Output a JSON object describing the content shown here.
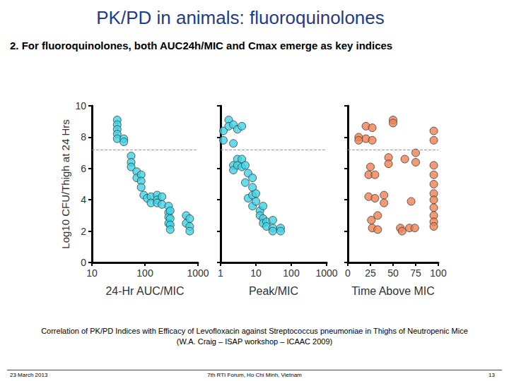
{
  "slide": {
    "title": "PK/PD in animals: fluoroquinolones",
    "subtitle": "2. For fluoroquinolones, both AUC24h/MIC and Cmax emerge as key indices",
    "caption": [
      "Correlation of PK/PD Indices with Efficacy of Levofloxacin against Streptococcus pneumoniae in Thighs of Neutropenic Mice",
      "(W.A. Craig – ISAP workshop – ICAAC 2009)"
    ],
    "footer": {
      "left": "23 March 2013",
      "center": "7th RTI Forum, Ho Chi Minh, Vietnam",
      "right": "13"
    }
  },
  "chart_data": [
    {
      "type": "scatter",
      "xlabel": "24-Hr AUC/MIC",
      "ylabel": "Log10 CFU/Thigh at 24 Hrs",
      "log": "x",
      "xlim": [
        10,
        1000
      ],
      "xticks": [
        10,
        100,
        1000
      ],
      "ylim": [
        0,
        10
      ],
      "yticks": [
        0,
        2,
        4,
        6,
        8,
        10
      ],
      "grid": false,
      "color": "#3fd3e6",
      "marker": "circle",
      "hline": 7.2,
      "x": [
        30,
        30,
        30,
        30,
        30,
        40,
        40,
        55,
        55,
        55,
        70,
        70,
        85,
        85,
        85,
        95,
        110,
        130,
        130,
        170,
        170,
        170,
        210,
        210,
        280,
        280,
        280,
        280,
        300,
        300,
        300,
        300,
        600,
        600,
        700,
        700,
        700
      ],
      "values": [
        9.1,
        8.8,
        8.5,
        8.2,
        7.9,
        7.9,
        7.7,
        6.8,
        6.4,
        6.1,
        5.8,
        5.4,
        5.6,
        5.2,
        4.8,
        4.3,
        4.1,
        4.2,
        3.8,
        4.3,
        4.0,
        3.8,
        4.2,
        3.7,
        3.6,
        3.2,
        2.9,
        2.5,
        3.3,
        2.8,
        2.4,
        2.1,
        3.0,
        2.5,
        2.8,
        2.3,
        2.0
      ]
    },
    {
      "type": "scatter",
      "xlabel": "Peak/MIC",
      "log": "x",
      "xlim": [
        1,
        1000
      ],
      "xticks": [
        1,
        10,
        100,
        1000
      ],
      "ylim": [
        0,
        10
      ],
      "yticks": [
        0,
        2,
        4,
        6,
        8,
        10
      ],
      "grid": false,
      "tick_labels": "x",
      "color": "#3fd3e6",
      "marker": "circle",
      "hline": 7.2,
      "x": [
        1.2,
        1.2,
        1.7,
        1.7,
        2.3,
        2.3,
        2.3,
        2.3,
        3,
        3,
        3,
        4,
        4,
        4,
        5,
        5,
        6,
        6,
        8,
        8,
        8,
        8,
        10,
        10,
        13,
        13,
        16,
        16,
        16,
        20,
        20,
        30,
        30,
        30,
        50,
        50
      ],
      "values": [
        8.4,
        7.8,
        9.1,
        8.7,
        8.8,
        7.6,
        6.2,
        5.9,
        8.5,
        6.6,
        6.2,
        8.7,
        6.6,
        6.1,
        6.2,
        5.1,
        5.7,
        4.1,
        5.4,
        4.8,
        4.3,
        3.6,
        4.4,
        3.9,
        3.3,
        3.0,
        3.6,
        2.8,
        2.5,
        2.6,
        2.3,
        2.7,
        2.2,
        2.0,
        2.2,
        2.0
      ]
    },
    {
      "type": "scatter",
      "xlabel": "Time Above MIC",
      "xlim": [
        0,
        100
      ],
      "xticks": [
        0,
        25,
        50,
        75,
        100
      ],
      "ylim": [
        0,
        10
      ],
      "yticks": [
        0,
        2,
        4,
        6,
        8,
        10
      ],
      "grid": false,
      "tick_labels": "x",
      "color": "#f07f50",
      "marker": "circle",
      "hline": 7.2,
      "x": [
        20,
        20,
        27,
        27,
        12,
        12,
        25,
        23,
        30,
        23,
        30,
        40,
        40,
        26,
        27,
        33,
        33,
        45,
        45,
        50,
        50,
        63,
        75,
        75,
        70,
        68,
        74,
        95,
        95,
        95,
        95,
        95,
        95,
        95,
        95,
        95,
        95,
        95,
        58,
        60
      ],
      "values": [
        8.7,
        7.9,
        8.6,
        7.8,
        8.0,
        7.8,
        6.1,
        5.6,
        5.6,
        4.2,
        4.1,
        4.3,
        3.8,
        2.7,
        2.2,
        2.1,
        3.0,
        6.7,
        6.3,
        9.1,
        8.9,
        6.6,
        6.4,
        7.0,
        3.9,
        2.2,
        2.2,
        8.4,
        7.8,
        6.2,
        5.6,
        5.0,
        4.4,
        4.0,
        3.5,
        3.0,
        2.6,
        2.3,
        2.2,
        2.0
      ]
    }
  ]
}
